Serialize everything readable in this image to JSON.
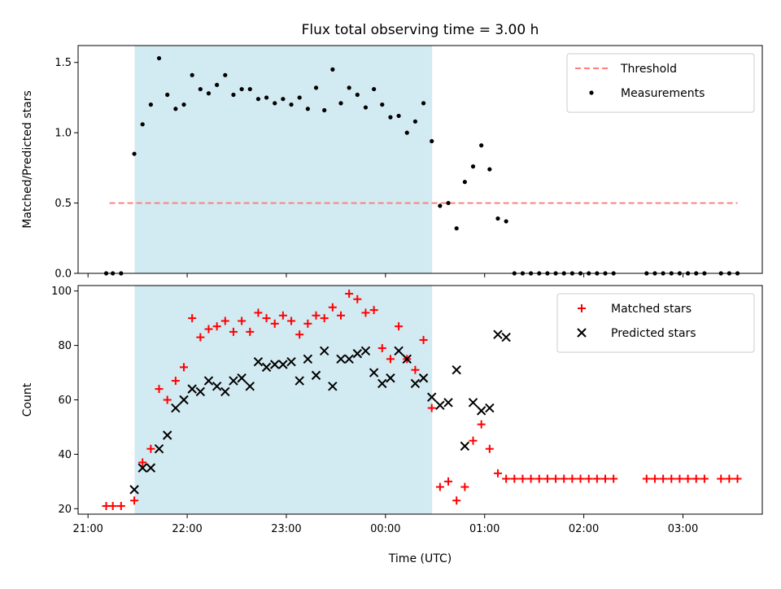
{
  "chart_data": [
    {
      "type": "scatter",
      "title": "Flux total observing time = 3.00 h",
      "xlabel": "",
      "ylabel": "Matched/Predicted stars",
      "ylim": [
        0,
        1.62
      ],
      "x_is_time_utc": true,
      "xlim_hours": [
        20.9,
        27.8
      ],
      "shaded_span_hours": [
        21.47,
        24.47
      ],
      "shade_color": "#add8e6",
      "legend_position": "top-right",
      "series": [
        {
          "name": "Threshold",
          "style": "dashed-line",
          "color": "#ff7f7f",
          "x": [
            "21:13",
            "03:33"
          ],
          "y": [
            0.5,
            0.5
          ]
        },
        {
          "name": "Measurements",
          "style": "dot",
          "color": "#000000",
          "x": [
            "21:11",
            "21:15",
            "21:20",
            "21:28",
            "21:33",
            "21:38",
            "21:43",
            "21:48",
            "21:53",
            "21:58",
            "22:03",
            "22:08",
            "22:13",
            "22:18",
            "22:23",
            "22:28",
            "22:33",
            "22:38",
            "22:43",
            "22:48",
            "22:53",
            "22:58",
            "23:03",
            "23:08",
            "23:13",
            "23:18",
            "23:23",
            "23:28",
            "23:33",
            "23:38",
            "23:43",
            "23:48",
            "23:53",
            "23:58",
            "00:03",
            "00:08",
            "00:13",
            "00:18",
            "00:23",
            "00:28",
            "00:33",
            "00:38",
            "00:43",
            "00:48",
            "00:53",
            "00:58",
            "01:03",
            "01:08",
            "01:13",
            "01:18",
            "01:23",
            "01:28",
            "01:33",
            "01:38",
            "01:43",
            "01:48",
            "01:53",
            "01:58",
            "02:03",
            "02:08",
            "02:13",
            "02:18",
            "02:38",
            "02:43",
            "02:48",
            "02:53",
            "02:58",
            "03:03",
            "03:08",
            "03:13",
            "03:23",
            "03:28",
            "03:33"
          ],
          "y": [
            0,
            0,
            0,
            0.85,
            1.06,
            1.2,
            1.53,
            1.27,
            1.17,
            1.2,
            1.41,
            1.31,
            1.28,
            1.34,
            1.41,
            1.27,
            1.31,
            1.31,
            1.24,
            1.25,
            1.21,
            1.24,
            1.2,
            1.25,
            1.17,
            1.32,
            1.16,
            1.45,
            1.21,
            1.32,
            1.27,
            1.18,
            1.31,
            1.2,
            1.11,
            1.12,
            1.0,
            1.08,
            1.21,
            0.94,
            0.48,
            0.5,
            0.32,
            0.65,
            0.76,
            0.91,
            0.74,
            0.39,
            0.37,
            0,
            0,
            0,
            0,
            0,
            0,
            0,
            0,
            0,
            0,
            0,
            0,
            0,
            0,
            0,
            0,
            0,
            0,
            0,
            0,
            0,
            0,
            0,
            0
          ]
        }
      ]
    },
    {
      "type": "scatter",
      "title": "",
      "xlabel": "Time (UTC)",
      "ylabel": "Count",
      "ylim": [
        18,
        102
      ],
      "x_is_time_utc": true,
      "xlim_hours": [
        20.9,
        27.8
      ],
      "x_tick_labels": [
        "21:00",
        "22:00",
        "23:00",
        "00:00",
        "01:00",
        "02:00",
        "03:00"
      ],
      "y_ticks": [
        20,
        40,
        60,
        80,
        100
      ],
      "shaded_span_hours": [
        21.47,
        24.47
      ],
      "shade_color": "#add8e6",
      "legend_position": "top-right",
      "series": [
        {
          "name": "Matched stars",
          "style": "plus",
          "color": "#ff0000",
          "x": [
            "21:11",
            "21:15",
            "21:20",
            "21:28",
            "21:33",
            "21:38",
            "21:43",
            "21:48",
            "21:53",
            "21:58",
            "22:03",
            "22:08",
            "22:13",
            "22:18",
            "22:23",
            "22:28",
            "22:33",
            "22:38",
            "22:43",
            "22:48",
            "22:53",
            "22:58",
            "23:03",
            "23:08",
            "23:13",
            "23:18",
            "23:23",
            "23:28",
            "23:33",
            "23:38",
            "23:43",
            "23:48",
            "23:53",
            "23:58",
            "00:03",
            "00:08",
            "00:13",
            "00:18",
            "00:23",
            "00:28",
            "00:33",
            "00:38",
            "00:43",
            "00:48",
            "00:53",
            "00:58",
            "01:03",
            "01:08",
            "01:13",
            "01:18",
            "01:23",
            "01:28",
            "01:33",
            "01:38",
            "01:43",
            "01:48",
            "01:53",
            "01:58",
            "02:03",
            "02:08",
            "02:13",
            "02:18",
            "02:38",
            "02:43",
            "02:48",
            "02:53",
            "02:58",
            "03:03",
            "03:08",
            "03:13",
            "03:23",
            "03:28",
            "03:33"
          ],
          "y": [
            21,
            21,
            21,
            23,
            37,
            42,
            64,
            60,
            67,
            72,
            90,
            83,
            86,
            87,
            89,
            85,
            89,
            85,
            92,
            90,
            88,
            91,
            89,
            84,
            88,
            91,
            90,
            94,
            91,
            99,
            97,
            92,
            93,
            79,
            75,
            87,
            75,
            71,
            82,
            57,
            28,
            30,
            23,
            28,
            45,
            51,
            42,
            33,
            31,
            31,
            31,
            31,
            31,
            31,
            31,
            31,
            31,
            31,
            31,
            31,
            31,
            31,
            31,
            31,
            31,
            31,
            31,
            31,
            31,
            31,
            31,
            31,
            31
          ]
        },
        {
          "name": "Predicted stars",
          "style": "x",
          "color": "#000000",
          "x": [
            "21:28",
            "21:33",
            "21:38",
            "21:43",
            "21:48",
            "21:53",
            "21:58",
            "22:03",
            "22:08",
            "22:13",
            "22:18",
            "22:23",
            "22:28",
            "22:33",
            "22:38",
            "22:43",
            "22:48",
            "22:53",
            "22:58",
            "23:03",
            "23:08",
            "23:13",
            "23:18",
            "23:23",
            "23:28",
            "23:33",
            "23:38",
            "23:43",
            "23:48",
            "23:53",
            "23:58",
            "00:03",
            "00:08",
            "00:13",
            "00:18",
            "00:23",
            "00:28",
            "00:33",
            "00:38",
            "00:43",
            "00:48",
            "00:53",
            "00:58",
            "01:03",
            "01:08",
            "01:13"
          ],
          "y": [
            27,
            35,
            35,
            42,
            47,
            57,
            60,
            64,
            63,
            67,
            65,
            63,
            67,
            68,
            65,
            74,
            72,
            73,
            73,
            74,
            67,
            75,
            69,
            78,
            65,
            75,
            75,
            77,
            78,
            70,
            66,
            68,
            78,
            75,
            66,
            68,
            61,
            58,
            59,
            71,
            43,
            59,
            56,
            57,
            84,
            83
          ]
        }
      ]
    }
  ]
}
